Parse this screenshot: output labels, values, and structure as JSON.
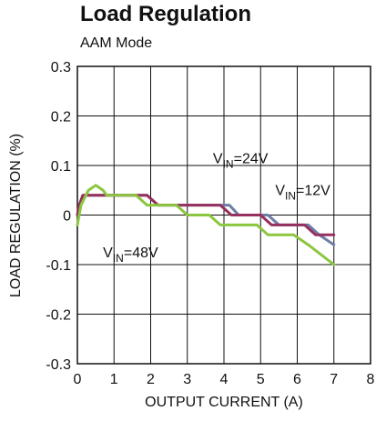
{
  "chart_data": {
    "type": "line",
    "title": "Load Regulation",
    "subtitle": "AAM Mode",
    "xlabel": "OUTPUT CURRENT (A)",
    "ylabel": "LOAD REGULATION (%)",
    "xlim": [
      0,
      8
    ],
    "ylim": [
      -0.3,
      0.3
    ],
    "x_ticks": [
      "0",
      "1",
      "2",
      "3",
      "4",
      "5",
      "6",
      "7",
      "8"
    ],
    "y_ticks": [
      "0.3",
      "0.2",
      "0.1",
      "0",
      "-0.1",
      "-0.2",
      "-0.3"
    ],
    "grid": true,
    "series": [
      {
        "name": "VIN=12V",
        "color": "#6e7ea6",
        "points": [
          [
            0,
            0
          ],
          [
            0.05,
            0.02
          ],
          [
            0.15,
            0.04
          ],
          [
            1.9,
            0.04
          ],
          [
            2.2,
            0.02
          ],
          [
            4.15,
            0.02
          ],
          [
            4.4,
            0
          ],
          [
            5.2,
            0
          ],
          [
            5.5,
            -0.02
          ],
          [
            6.3,
            -0.02
          ],
          [
            6.6,
            -0.04
          ],
          [
            7.0,
            -0.06
          ]
        ]
      },
      {
        "name": "VIN=24V",
        "color": "#96305e",
        "points": [
          [
            0,
            0
          ],
          [
            0.05,
            0.02
          ],
          [
            0.15,
            0.04
          ],
          [
            1.9,
            0.04
          ],
          [
            2.2,
            0.02
          ],
          [
            3.9,
            0.02
          ],
          [
            4.2,
            0
          ],
          [
            5.0,
            0
          ],
          [
            5.3,
            -0.02
          ],
          [
            6.2,
            -0.02
          ],
          [
            6.5,
            -0.04
          ],
          [
            7.0,
            -0.04
          ]
        ]
      },
      {
        "name": "VIN=48V",
        "color": "#8cc63f",
        "points": [
          [
            0,
            -0.02
          ],
          [
            0.1,
            0.02
          ],
          [
            0.3,
            0.05
          ],
          [
            0.5,
            0.06
          ],
          [
            0.7,
            0.05
          ],
          [
            0.8,
            0.04
          ],
          [
            1.6,
            0.04
          ],
          [
            1.9,
            0.02
          ],
          [
            2.7,
            0.02
          ],
          [
            3.0,
            0
          ],
          [
            3.6,
            0
          ],
          [
            3.9,
            -0.02
          ],
          [
            4.9,
            -0.02
          ],
          [
            5.2,
            -0.04
          ],
          [
            5.9,
            -0.04
          ],
          [
            6.3,
            -0.06
          ],
          [
            7.0,
            -0.1
          ]
        ]
      }
    ],
    "annotations": [
      {
        "main": "V",
        "sub": "IN",
        "rest": "=24V",
        "x": 3.7,
        "y": 0.105
      },
      {
        "main": "V",
        "sub": "IN",
        "rest": "=12V",
        "x": 5.4,
        "y": 0.04
      },
      {
        "main": "V",
        "sub": "IN",
        "rest": "=48V",
        "x": 0.7,
        "y": -0.085
      }
    ]
  }
}
